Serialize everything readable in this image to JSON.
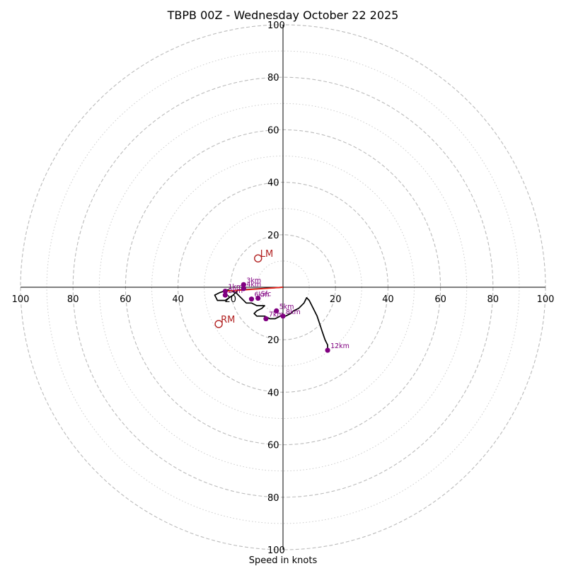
{
  "chart_data": {
    "type": "hodograph",
    "title": "TBPB 00Z - Wednesday October 22 2025",
    "xlabel": "Speed in knots",
    "units": "knots",
    "range": [
      -100,
      100
    ],
    "major_rings": [
      20,
      40,
      60,
      80,
      100
    ],
    "minor_rings": [
      10,
      30,
      50,
      70,
      90
    ],
    "tick_labels": {
      "x": [
        "100",
        "80",
        "60",
        "40",
        "20",
        "20",
        "40",
        "60",
        "80",
        "100"
      ],
      "y": [
        "100",
        "80",
        "60",
        "40",
        "20",
        "20",
        "40",
        "60",
        "80",
        "100"
      ]
    },
    "colors": {
      "trace": "#000000",
      "points": "#800080",
      "storm_motion": "#b22222",
      "shear_vector": "#e8241c",
      "rings": "#bbbbbb"
    },
    "trace": [
      [
        0,
        0
      ],
      [
        -17,
        -1
      ],
      [
        -19,
        -3
      ],
      [
        -22,
        -5
      ],
      [
        -25,
        -5
      ],
      [
        -26,
        -3
      ],
      [
        -24,
        -2
      ],
      [
        -21,
        -1
      ],
      [
        -18,
        -2
      ],
      [
        -16,
        -4
      ],
      [
        -14,
        -6
      ],
      [
        -12,
        -6
      ],
      [
        -10,
        -7
      ],
      [
        -8,
        -7
      ],
      [
        -7,
        -7
      ],
      [
        -8,
        -8
      ],
      [
        -10,
        -9
      ],
      [
        -11,
        -10
      ],
      [
        -10,
        -11
      ],
      [
        -9,
        -11
      ],
      [
        -7,
        -11
      ],
      [
        -5,
        -12
      ],
      [
        -3,
        -12
      ],
      [
        -1,
        -11
      ],
      [
        1,
        -11
      ],
      [
        3,
        -10
      ],
      [
        4,
        -9
      ],
      [
        6,
        -8
      ],
      [
        8,
        -6
      ],
      [
        9,
        -4
      ],
      [
        10,
        -5
      ],
      [
        11,
        -7
      ],
      [
        13,
        -11
      ],
      [
        14,
        -14
      ],
      [
        15,
        -17
      ],
      [
        16,
        -20
      ],
      [
        17,
        -22
      ],
      [
        17,
        -24
      ]
    ],
    "points": [
      {
        "label": "Sfc",
        "u": -9.5,
        "v": -4.2
      },
      {
        "label": "1km",
        "u": -22,
        "v": -1.5
      },
      {
        "label": "2km",
        "u": -22,
        "v": -3
      },
      {
        "label": "3km",
        "u": -15,
        "v": 1
      },
      {
        "label": "4km",
        "u": -15,
        "v": -0.5
      },
      {
        "label": "5km",
        "u": -2.5,
        "v": -9
      },
      {
        "label": "6km",
        "u": -12,
        "v": -4.5
      },
      {
        "label": "7km",
        "u": -6.5,
        "v": -12
      },
      {
        "label": "8km",
        "u": 0,
        "v": -11
      },
      {
        "label": "12km",
        "u": 17,
        "v": -24
      }
    ],
    "storm_motion": [
      {
        "label": "LM",
        "u": -9.5,
        "v": 11
      },
      {
        "label": "RM",
        "u": -24.5,
        "v": -14
      }
    ],
    "shear_vector": {
      "from": [
        0,
        0
      ],
      "to": [
        -22,
        -1.5
      ]
    }
  }
}
